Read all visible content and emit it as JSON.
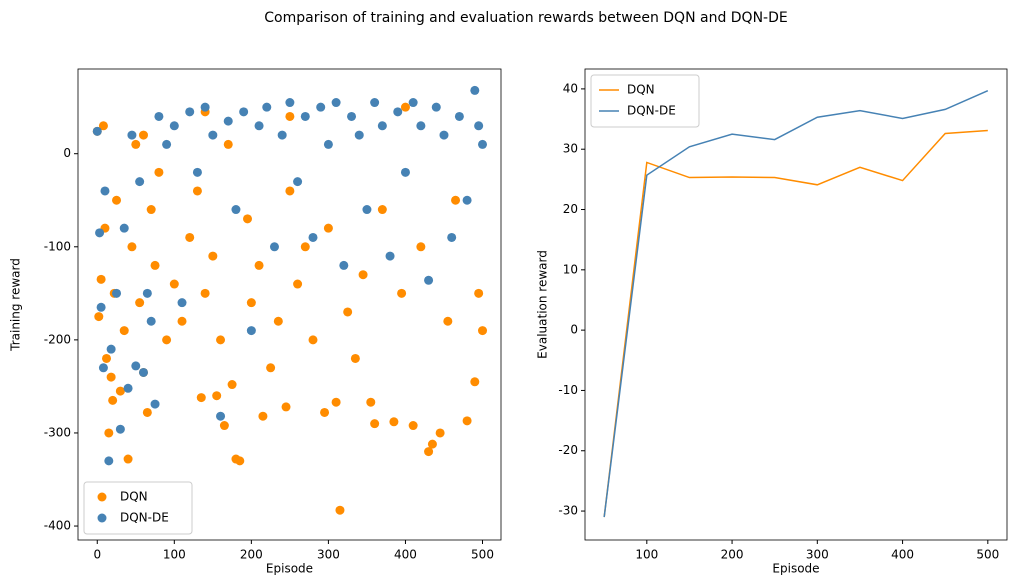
{
  "title": "Comparison of training and evaluation rewards between DQN and DQN-DE",
  "chart_data": [
    {
      "type": "scatter",
      "xlabel": "Episode",
      "ylabel": "Training reward",
      "xlim": [
        -25,
        524
      ],
      "xticks": [
        0,
        100,
        200,
        300,
        400,
        500
      ],
      "ylim": [
        -415,
        91
      ],
      "yticks": [
        -400,
        -300,
        -200,
        -100,
        0
      ],
      "legend": "lower left",
      "series": [
        {
          "name": "DQN",
          "color": "#ff8c00",
          "x": [
            0,
            2,
            5,
            8,
            10,
            12,
            15,
            18,
            20,
            22,
            25,
            30,
            35,
            40,
            45,
            50,
            55,
            60,
            65,
            70,
            75,
            80,
            90,
            100,
            110,
            120,
            130,
            135,
            140,
            150,
            155,
            160,
            165,
            175,
            180,
            185,
            195,
            200,
            210,
            215,
            225,
            235,
            245,
            250,
            260,
            270,
            280,
            295,
            300,
            310,
            315,
            325,
            335,
            345,
            355,
            360,
            370,
            385,
            395,
            410,
            420,
            430,
            435,
            445,
            455,
            465,
            480,
            490,
            495,
            500,
            140,
            250,
            400,
            60,
            170
          ],
          "values": [
            24,
            -175,
            -135,
            30,
            -80,
            -220,
            -300,
            -240,
            -265,
            -150,
            -50,
            -255,
            -190,
            -328,
            -100,
            10,
            -160,
            -235,
            -278,
            -60,
            -120,
            -20,
            -200,
            -140,
            -180,
            -90,
            -40,
            -262,
            -150,
            -110,
            -260,
            -200,
            -292,
            -248,
            -328,
            -330,
            -70,
            -160,
            -120,
            -282,
            -230,
            -180,
            -272,
            -40,
            -140,
            -100,
            -200,
            -278,
            -80,
            -267,
            -383,
            -170,
            -220,
            -130,
            -267,
            -290,
            -60,
            -288,
            -150,
            -292,
            -100,
            -320,
            -312,
            -300,
            -180,
            -50,
            -287,
            -245,
            -150,
            -190,
            45,
            40,
            50,
            20,
            10
          ]
        },
        {
          "name": "DQN-DE",
          "color": "#4682b4",
          "x": [
            0,
            3,
            5,
            8,
            10,
            15,
            18,
            25,
            30,
            35,
            40,
            45,
            50,
            55,
            60,
            65,
            70,
            75,
            80,
            90,
            100,
            110,
            120,
            130,
            140,
            150,
            160,
            170,
            180,
            190,
            200,
            210,
            220,
            230,
            240,
            250,
            260,
            270,
            280,
            290,
            300,
            310,
            320,
            330,
            340,
            350,
            360,
            370,
            380,
            390,
            400,
            410,
            420,
            430,
            440,
            450,
            460,
            470,
            480,
            490,
            495,
            500
          ],
          "values": [
            24,
            -85,
            -165,
            -230,
            -40,
            -330,
            -210,
            -150,
            -296,
            -80,
            -252,
            20,
            -228,
            -30,
            -235,
            -150,
            -180,
            -269,
            40,
            10,
            30,
            -160,
            45,
            -20,
            50,
            20,
            -282,
            35,
            -60,
            45,
            -190,
            30,
            50,
            -100,
            20,
            55,
            -30,
            40,
            -90,
            50,
            10,
            55,
            -120,
            40,
            20,
            -60,
            55,
            30,
            -110,
            45,
            -20,
            55,
            30,
            -136,
            50,
            20,
            -90,
            40,
            -50,
            68,
            30,
            10
          ]
        }
      ]
    },
    {
      "type": "line",
      "xlabel": "Episode",
      "ylabel": "Evaluation reward",
      "xlim": [
        27.5,
        522.5
      ],
      "xticks": [
        100,
        200,
        300,
        400,
        500
      ],
      "ylim": [
        -34.8,
        43.3
      ],
      "yticks": [
        -30,
        -20,
        -10,
        0,
        10,
        20,
        30,
        40
      ],
      "legend": "upper left",
      "series": [
        {
          "name": "DQN",
          "color": "#ff8c00",
          "x": [
            50,
            100,
            150,
            200,
            250,
            300,
            350,
            400,
            450,
            500
          ],
          "values": [
            -31,
            27.8,
            25.3,
            25.4,
            25.3,
            24.1,
            27,
            24.8,
            32.6,
            33.1
          ]
        },
        {
          "name": "DQN-DE",
          "color": "#4682b4",
          "x": [
            50,
            100,
            150,
            200,
            250,
            300,
            350,
            400,
            450,
            500
          ],
          "values": [
            -31,
            25.7,
            30.4,
            32.5,
            31.6,
            35.3,
            36.4,
            35.1,
            36.6,
            39.7
          ]
        }
      ]
    }
  ]
}
